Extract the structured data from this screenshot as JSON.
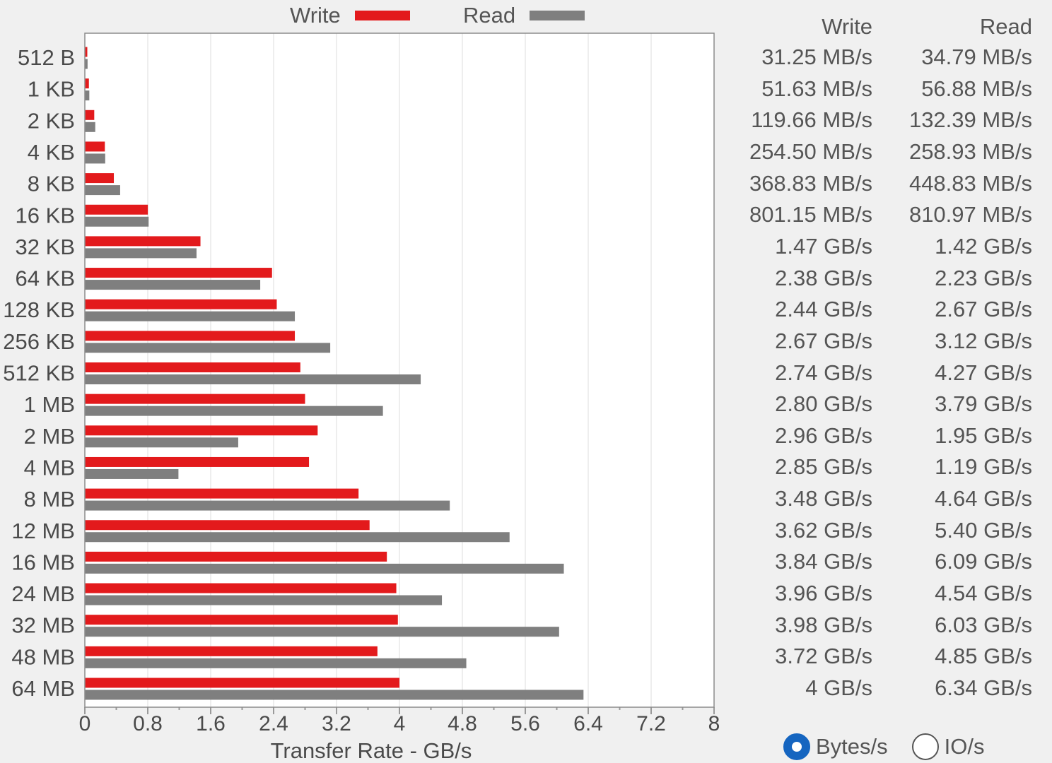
{
  "colors": {
    "write": "#e31a1c",
    "read": "#7f7f7f",
    "grid": "#dcdcdc",
    "accent": "#1565c0"
  },
  "legend": {
    "write_label": "Write",
    "read_label": "Read"
  },
  "table": {
    "write_header": "Write",
    "read_header": "Read"
  },
  "units": {
    "options": [
      {
        "label": "Bytes/s",
        "selected": true
      },
      {
        "label": "IO/s",
        "selected": false
      }
    ]
  },
  "chart_data": {
    "type": "bar",
    "orientation": "horizontal",
    "xlabel": "Transfer Rate - GB/s",
    "xlim": [
      0,
      8
    ],
    "xticks": [
      "0",
      "0.8",
      "1.6",
      "2.4",
      "3.2",
      "4",
      "4.8",
      "5.6",
      "6.4",
      "7.2",
      "8"
    ],
    "grid": true,
    "legend_position": "top",
    "categories": [
      "512 B",
      "1 KB",
      "2 KB",
      "4 KB",
      "8 KB",
      "16 KB",
      "32 KB",
      "64 KB",
      "128 KB",
      "256 KB",
      "512 KB",
      "1 MB",
      "2 MB",
      "4 MB",
      "8 MB",
      "12 MB",
      "16 MB",
      "24 MB",
      "32 MB",
      "48 MB",
      "64 MB"
    ],
    "series": [
      {
        "name": "Write",
        "values": [
          0.03125,
          0.05163,
          0.11966,
          0.2545,
          0.36883,
          0.80115,
          1.47,
          2.38,
          2.44,
          2.67,
          2.74,
          2.8,
          2.96,
          2.85,
          3.48,
          3.62,
          3.84,
          3.96,
          3.98,
          3.72,
          4.0
        ],
        "labels": [
          "31.25 MB/s",
          "51.63 MB/s",
          "119.66 MB/s",
          "254.50 MB/s",
          "368.83 MB/s",
          "801.15 MB/s",
          "1.47 GB/s",
          "2.38 GB/s",
          "2.44 GB/s",
          "2.67 GB/s",
          "2.74 GB/s",
          "2.80 GB/s",
          "2.96 GB/s",
          "2.85 GB/s",
          "3.48 GB/s",
          "3.62 GB/s",
          "3.84 GB/s",
          "3.96 GB/s",
          "3.98 GB/s",
          "3.72 GB/s",
          "4 GB/s"
        ]
      },
      {
        "name": "Read",
        "values": [
          0.03479,
          0.05688,
          0.13239,
          0.25893,
          0.44883,
          0.81097,
          1.42,
          2.23,
          2.67,
          3.12,
          4.27,
          3.79,
          1.95,
          1.19,
          4.64,
          5.4,
          6.09,
          4.54,
          6.03,
          4.85,
          6.34
        ],
        "labels": [
          "34.79 MB/s",
          "56.88 MB/s",
          "132.39 MB/s",
          "258.93 MB/s",
          "448.83 MB/s",
          "810.97 MB/s",
          "1.42 GB/s",
          "2.23 GB/s",
          "2.67 GB/s",
          "3.12 GB/s",
          "4.27 GB/s",
          "3.79 GB/s",
          "1.95 GB/s",
          "1.19 GB/s",
          "4.64 GB/s",
          "5.40 GB/s",
          "6.09 GB/s",
          "4.54 GB/s",
          "6.03 GB/s",
          "4.85 GB/s",
          "6.34 GB/s"
        ]
      }
    ]
  }
}
